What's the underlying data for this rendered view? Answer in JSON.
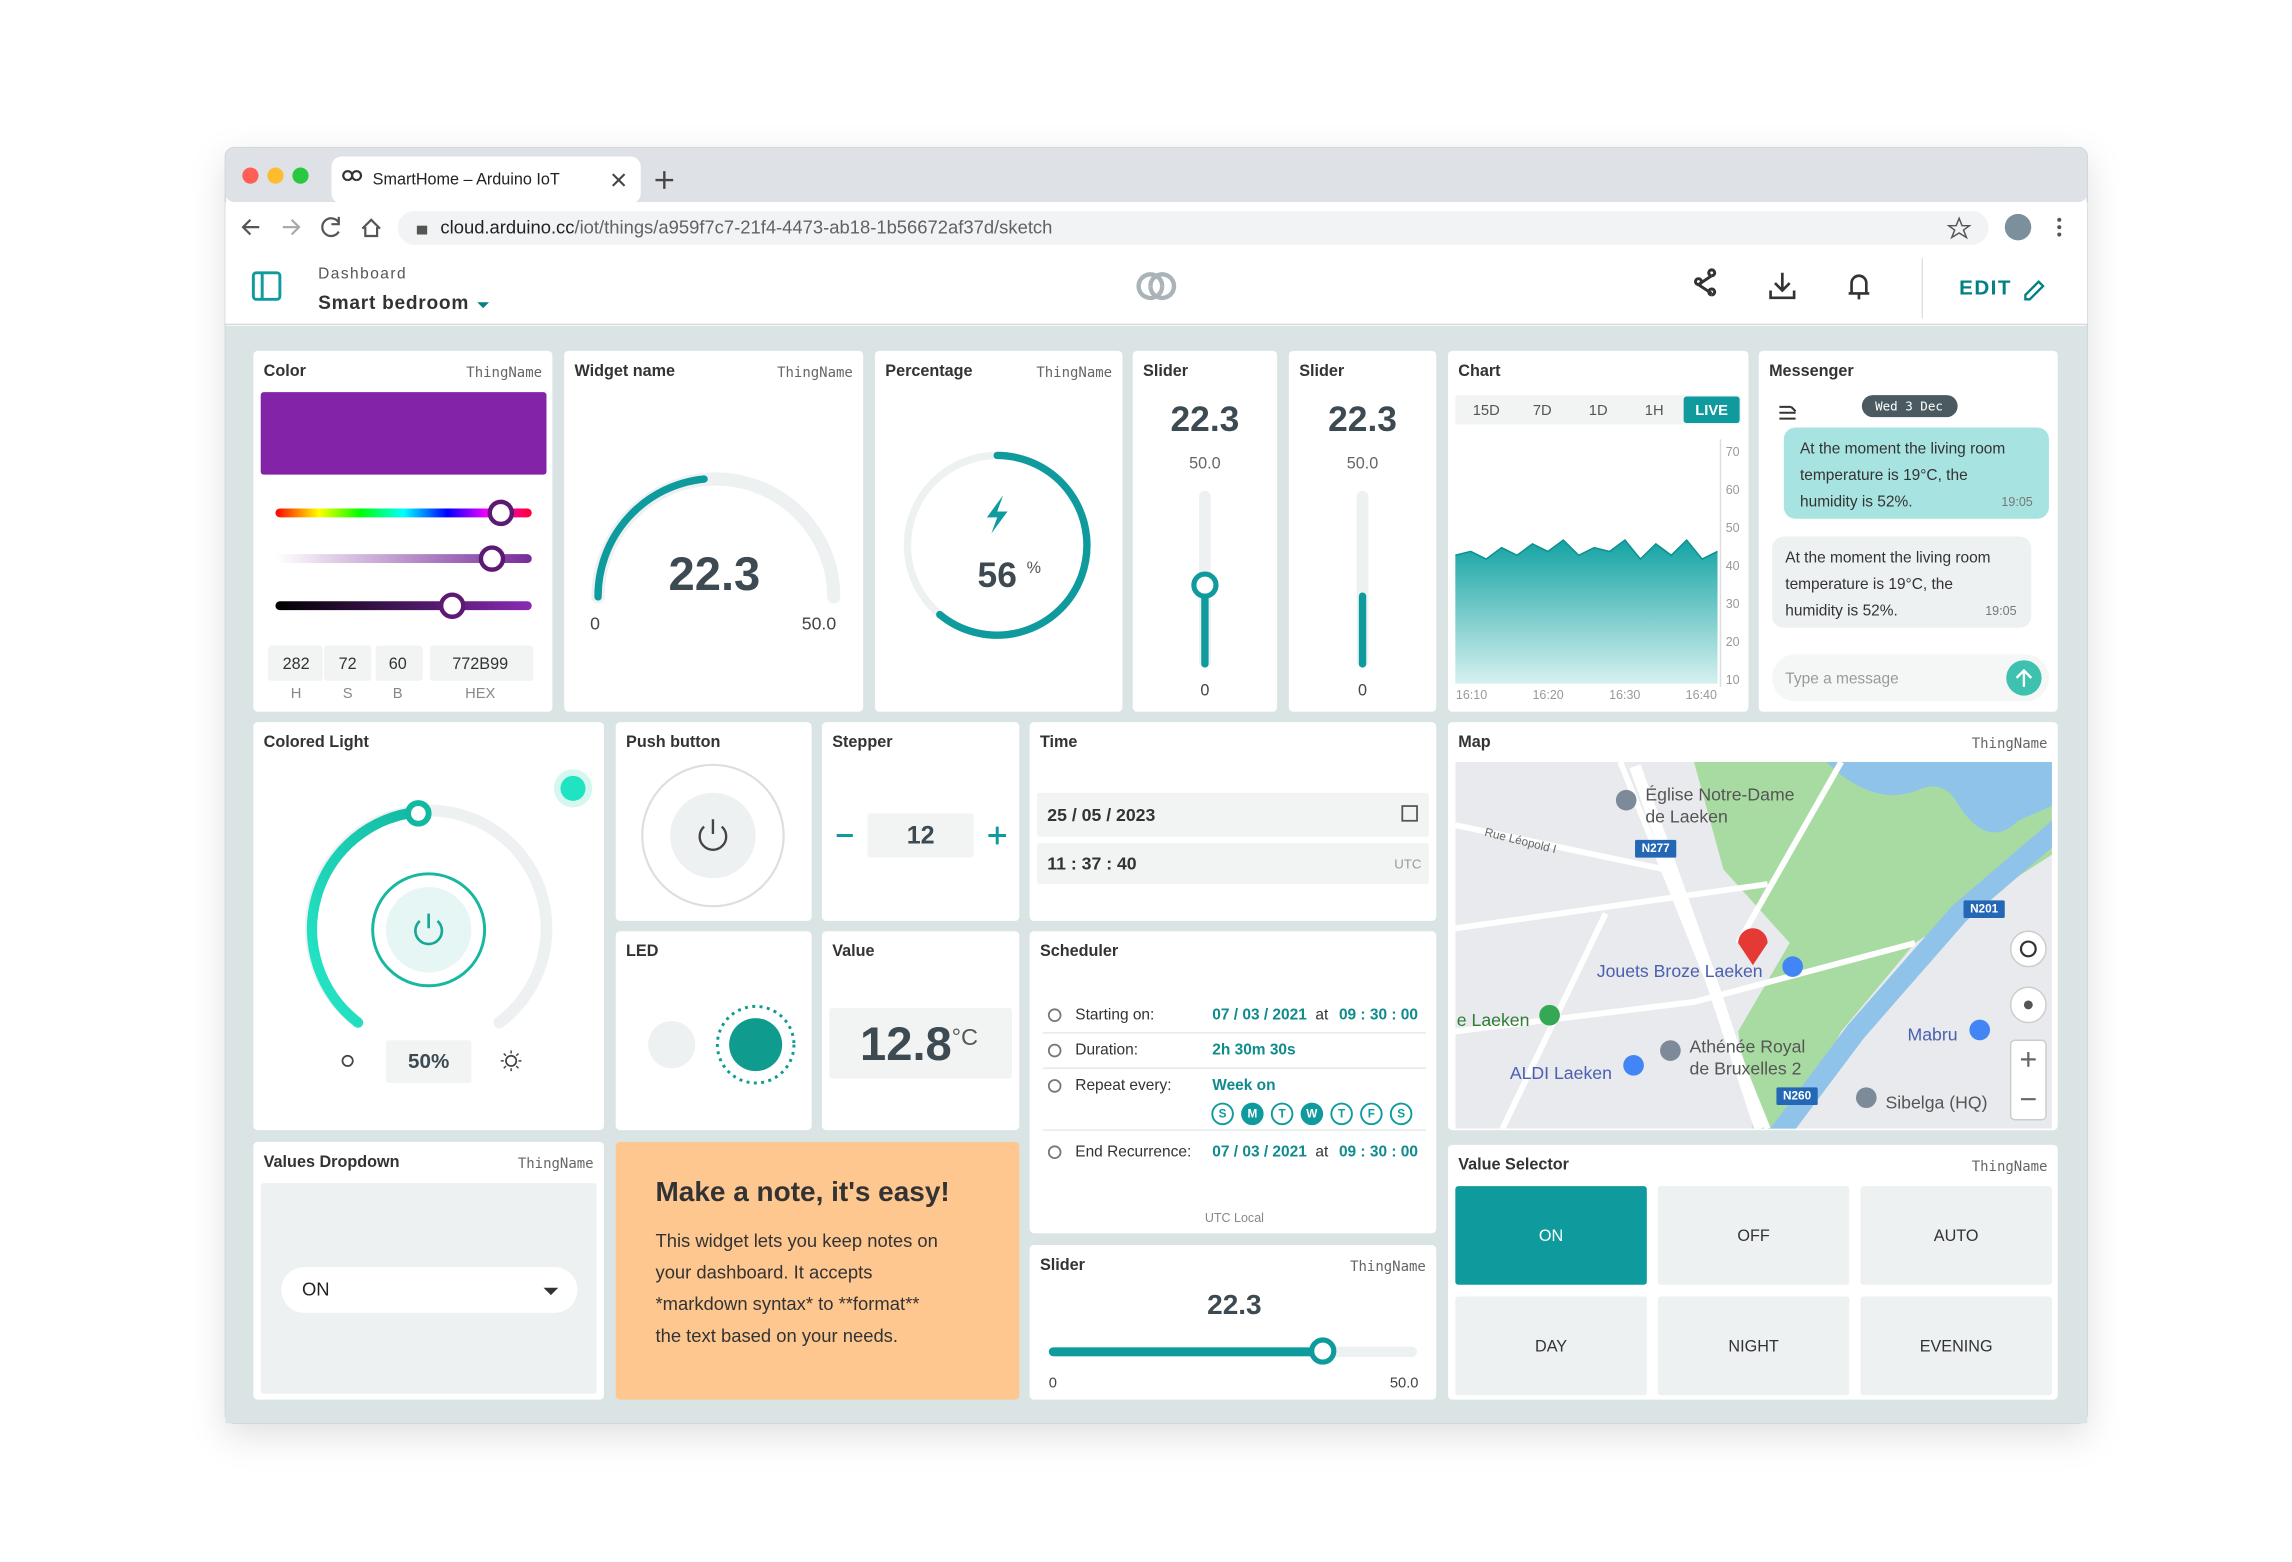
{
  "browser": {
    "tab_title": "SmartHome – Arduino IoT",
    "url_host": "cloud.arduino.cc",
    "url_path": "/iot/things/a959f7c7-21f4-4473-ab18-1b56672af37d/sketch"
  },
  "header": {
    "breadcrumb": "Dashboard",
    "title": "Smart bedroom",
    "edit": "EDIT"
  },
  "color": {
    "title": "Color",
    "thing": "ThingName",
    "values": [
      "282",
      "72",
      "60",
      "772B99"
    ],
    "labels": [
      "H",
      "S",
      "B",
      "HEX"
    ]
  },
  "widget_name": {
    "title": "Widget name",
    "thing": "ThingName",
    "value": "22.3",
    "min": "0",
    "max": "50.0"
  },
  "percentage": {
    "title": "Percentage",
    "thing": "ThingName",
    "value": "56",
    "unit": "%"
  },
  "sliders": [
    {
      "title": "Slider",
      "value": "22.3",
      "max": "50.0",
      "min": "0"
    },
    {
      "title": "Slider",
      "value": "22.3",
      "max": "50.0",
      "min": "0"
    }
  ],
  "chart": {
    "title": "Chart",
    "ranges": [
      "15D",
      "7D",
      "1D",
      "1H",
      "LIVE"
    ],
    "ylim": [
      10,
      70
    ],
    "yticks": [
      70,
      60,
      50,
      40,
      30,
      20,
      10
    ],
    "x_labels": [
      "16:10",
      "16:20",
      "16:30",
      "16:40"
    ],
    "values": [
      43,
      44,
      42,
      45,
      43,
      46,
      44,
      47,
      43,
      45,
      44,
      47,
      42,
      46,
      43,
      47,
      42,
      44
    ]
  },
  "messenger": {
    "title": "Messenger",
    "date": "Wed 3 Dec",
    "messages": [
      {
        "lines": [
          "At the moment the living room",
          "temperature is 19°C, the",
          "humidity is 52%."
        ],
        "time": "19:05"
      },
      {
        "lines": [
          "At the moment the living room",
          "temperature is 19°C, the",
          "humidity is 52%."
        ],
        "time": "19:05"
      }
    ],
    "placeholder": "Type a message"
  },
  "colored_light": {
    "title": "Colored Light",
    "value": "50%"
  },
  "push_button": {
    "title": "Push button"
  },
  "stepper": {
    "title": "Stepper",
    "value": "12"
  },
  "time": {
    "title": "Time",
    "date": "25 / 05 / 2023",
    "time": "11 : 37 : 40",
    "tz": "UTC"
  },
  "map": {
    "title": "Map",
    "thing": "ThingName",
    "labels": [
      "Église Notre-Dame",
      "de Laeken",
      "Rue Léopold I",
      "N277",
      "N201",
      "Jouets Broze Laeken",
      "e Laeken",
      "Athénée Royal",
      "de Bruxelles 2",
      "Mabru",
      "ALDI Laeken",
      "N260",
      "Sibelga (HQ)"
    ]
  },
  "led": {
    "title": "LED"
  },
  "value": {
    "title": "Value",
    "value": "12.8",
    "unit": "°C"
  },
  "scheduler": {
    "title": "Scheduler",
    "rows": [
      {
        "label": "Starting on:",
        "date": "07 / 03 / 2021",
        "at": "at",
        "time": "09 : 30 : 00"
      },
      {
        "label": "Duration:",
        "value": "2h 30m 30s"
      },
      {
        "label": "Repeat every:",
        "value": "Week on"
      },
      {
        "label": "End Recurrence:",
        "date": "07 / 03 / 2021",
        "at": "at",
        "time": "09 : 30 : 00"
      }
    ],
    "days": [
      "S",
      "M",
      "T",
      "W",
      "T",
      "F",
      "S"
    ],
    "footer": "UTC Local"
  },
  "dropdown": {
    "title": "Values Dropdown",
    "thing": "ThingName",
    "value": "ON"
  },
  "note": {
    "title": "Make a note, it's easy!",
    "lines": [
      "This widget lets you keep notes on",
      "your dashboard. It accepts",
      "*markdown syntax* to **format**",
      "the text based on your needs."
    ]
  },
  "slider_h": {
    "title": "Slider",
    "thing": "ThingName",
    "value": "22.3",
    "min": "0",
    "max": "50.0"
  },
  "selector": {
    "title": "Value Selector",
    "thing": "ThingName",
    "options": [
      "ON",
      "OFF",
      "AUTO",
      "DAY",
      "NIGHT",
      "EVENING"
    ]
  }
}
